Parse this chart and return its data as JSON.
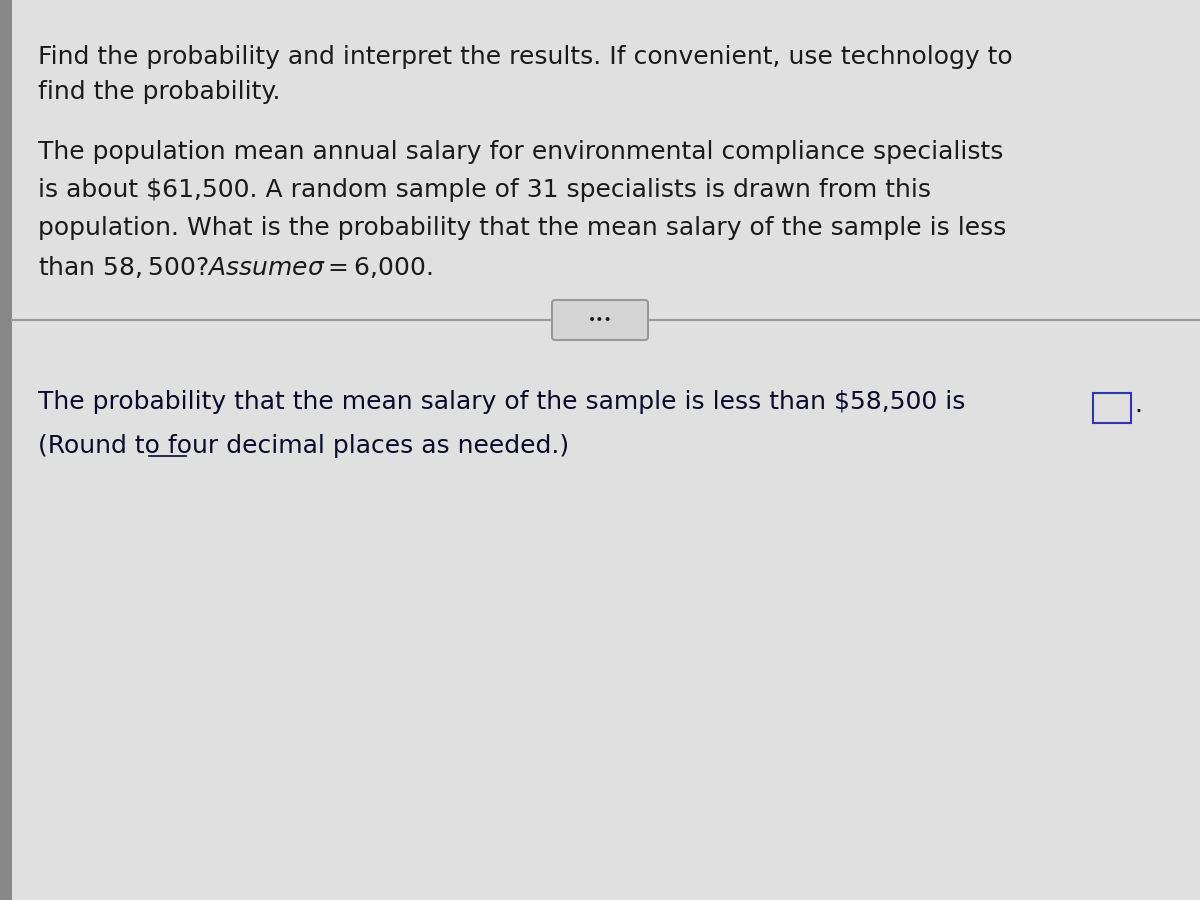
{
  "bg_color_outer": "#c8c8c8",
  "bg_color_inner": "#d8d8d8",
  "bg_color_panel": "#e0e0e0",
  "text_color": "#1a1a1a",
  "answer_text_color": "#0a0a2a",
  "title_text_line1": "Find the probability and interpret the results. If convenient, use technology to",
  "title_text_line2": "find the probability.",
  "body_text_line1": "The population mean annual salary for environmental compliance specialists",
  "body_text_line2": "is about $61,500. A random sample of 31 specialists is drawn from this",
  "body_text_line3": "population. What is the probability that the mean salary of the sample is less",
  "body_text_line4": "than $58,500? Assume σ = $6,000.",
  "divider_dots": "•••",
  "answer_line1": "The probability that the mean salary of the sample is less than $58,500 is",
  "answer_line2": "(Round to four decimal places as needed.)",
  "font_size": 18,
  "left_bar_color": "#888888",
  "line_color": "#999999",
  "btn_color": "#d4d4d4",
  "btn_border_color": "#999999",
  "ans_box_border": "#3333aa"
}
